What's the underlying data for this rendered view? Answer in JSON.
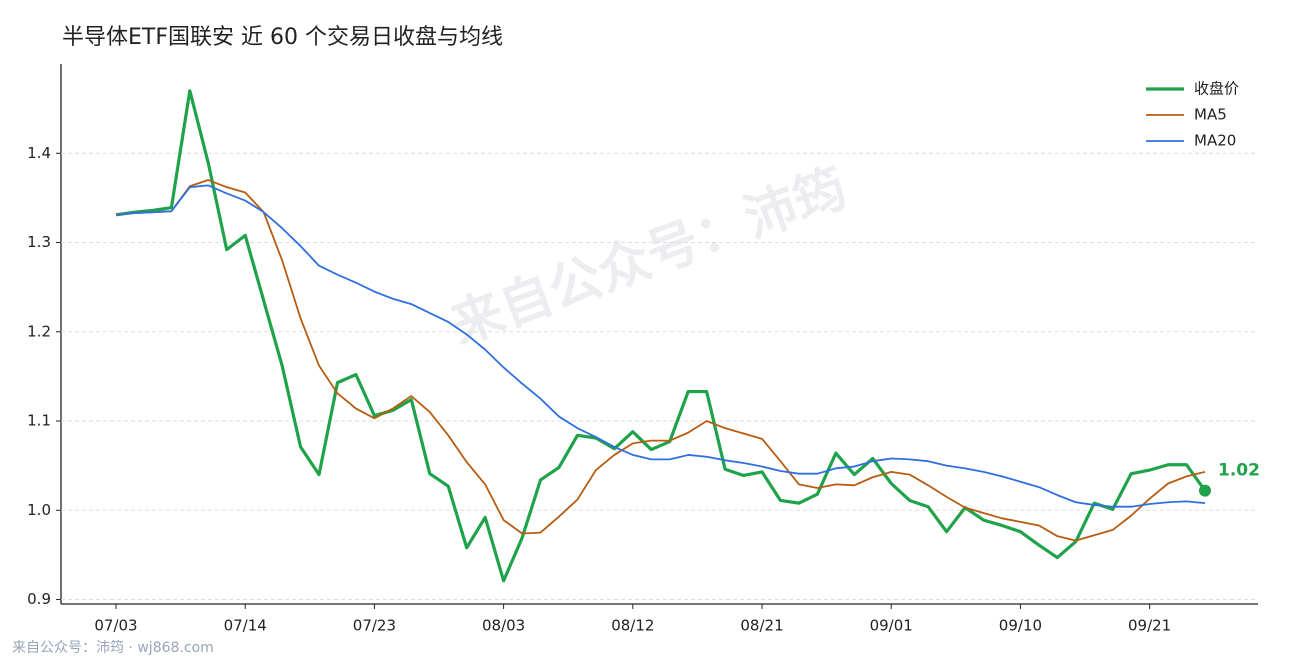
{
  "chart_data": {
    "type": "line",
    "title": "半导体ETF国联安 近 60 个交易日收盘与均线",
    "watermark": "来自公众号：沛筠",
    "footer": "来自公众号：沛筠 · wj868.com",
    "categories": [
      "07/03",
      null,
      null,
      null,
      null,
      null,
      null,
      "07/14",
      null,
      null,
      null,
      null,
      null,
      null,
      "07/23",
      null,
      null,
      null,
      null,
      null,
      null,
      "08/03",
      null,
      null,
      null,
      null,
      null,
      null,
      "08/12",
      null,
      null,
      null,
      null,
      null,
      null,
      "08/21",
      null,
      null,
      null,
      null,
      null,
      null,
      "09/01",
      null,
      null,
      null,
      null,
      null,
      null,
      "09/10",
      null,
      null,
      null,
      null,
      null,
      null,
      "09/21",
      null,
      null,
      null
    ],
    "series": [
      {
        "name": "收盘价",
        "color": "#1fa34a",
        "values": [
          1.331,
          1.334,
          1.336,
          1.339,
          1.47,
          1.389,
          1.292,
          1.308,
          1.235,
          1.162,
          1.071,
          1.04,
          1.143,
          1.152,
          1.106,
          1.112,
          1.124,
          1.041,
          1.027,
          0.958,
          0.992,
          0.921,
          0.969,
          1.034,
          1.048,
          1.084,
          1.081,
          1.069,
          1.088,
          1.068,
          1.077,
          1.133,
          1.133,
          1.046,
          1.039,
          1.043,
          1.011,
          1.008,
          1.018,
          1.064,
          1.04,
          1.058,
          1.03,
          1.011,
          1.004,
          0.976,
          1.003,
          0.989,
          0.983,
          0.976,
          0.961,
          0.947,
          0.965,
          1.008,
          1.001,
          1.041,
          1.045,
          1.051,
          1.051,
          1.022
        ],
        "value_labels": [
          null,
          null,
          null,
          null,
          null,
          null,
          null,
          null,
          null,
          null,
          null,
          null,
          null,
          null,
          null,
          null,
          null,
          null,
          null,
          null,
          null,
          null,
          null,
          null,
          null,
          null,
          null,
          null,
          null,
          null,
          null,
          null,
          null,
          null,
          null,
          null,
          null,
          null,
          null,
          null,
          null,
          null,
          null,
          null,
          null,
          null,
          null,
          null,
          null,
          null,
          null,
          null,
          null,
          null,
          null,
          null,
          null,
          null,
          null,
          "1.02"
        ]
      },
      {
        "name": "MA5",
        "color": "#b85c12",
        "values": [
          1.331,
          1.333,
          1.334,
          1.335,
          1.363,
          1.37,
          1.362,
          1.356,
          1.334,
          1.28,
          1.215,
          1.162,
          1.131,
          1.114,
          1.103,
          1.114,
          1.128,
          1.11,
          1.084,
          1.054,
          1.029,
          0.989,
          0.974,
          0.975,
          0.993,
          1.012,
          1.045,
          1.062,
          1.075,
          1.078,
          1.078,
          1.087,
          1.1,
          1.092,
          1.086,
          1.08,
          1.055,
          1.029,
          1.025,
          1.029,
          1.028,
          1.037,
          1.043,
          1.04,
          1.028,
          1.015,
          1.003,
          0.997,
          0.991,
          0.987,
          0.983,
          0.971,
          0.966,
          0.972,
          0.978,
          0.994,
          1.013,
          1.03,
          1.038,
          1.043
        ]
      },
      {
        "name": "MA20",
        "color": "#2f6fe0",
        "values": [
          1.331,
          1.333,
          1.334,
          1.335,
          1.362,
          1.364,
          1.355,
          1.347,
          1.334,
          1.316,
          1.296,
          1.274,
          1.264,
          1.255,
          1.245,
          1.237,
          1.231,
          1.221,
          1.211,
          1.197,
          1.18,
          1.16,
          1.142,
          1.125,
          1.105,
          1.092,
          1.082,
          1.071,
          1.062,
          1.057,
          1.057,
          1.062,
          1.06,
          1.056,
          1.053,
          1.049,
          1.044,
          1.041,
          1.041,
          1.047,
          1.049,
          1.055,
          1.058,
          1.057,
          1.055,
          1.05,
          1.047,
          1.043,
          1.038,
          1.032,
          1.026,
          1.017,
          1.009,
          1.006,
          1.004,
          1.004,
          1.007,
          1.009,
          1.01,
          1.008
        ]
      }
    ],
    "ylim": [
      0.895,
      1.5
    ],
    "yticks": [
      0.9,
      {
        "value": 1,
        "label": "1.0"
      },
      1.1,
      1.2,
      1.3,
      1.4
    ],
    "grid": true,
    "legend": "upper right"
  }
}
